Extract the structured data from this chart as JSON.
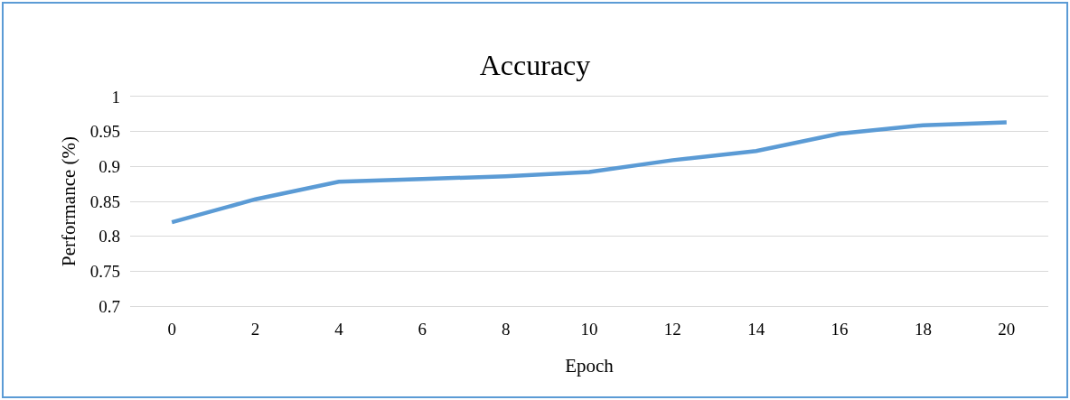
{
  "chart_data": {
    "type": "line",
    "title": "Accuracy",
    "xlabel": "Epoch",
    "ylabel": "Performance (%)",
    "categories": [
      "0",
      "2",
      "4",
      "6",
      "8",
      "10",
      "12",
      "14",
      "16",
      "18",
      "20"
    ],
    "series": [
      {
        "color": "#5b9bd5",
        "values": [
          0.82,
          0.853,
          0.878,
          0.882,
          0.886,
          0.892,
          0.909,
          0.922,
          0.947,
          0.959,
          0.963
        ]
      }
    ],
    "ylim": [
      0.7,
      1
    ],
    "yticks": [
      0.7,
      0.75,
      0.8,
      0.85,
      0.9,
      0.95,
      1
    ],
    "grid": "y",
    "marker": "none",
    "line_style": "solid"
  }
}
